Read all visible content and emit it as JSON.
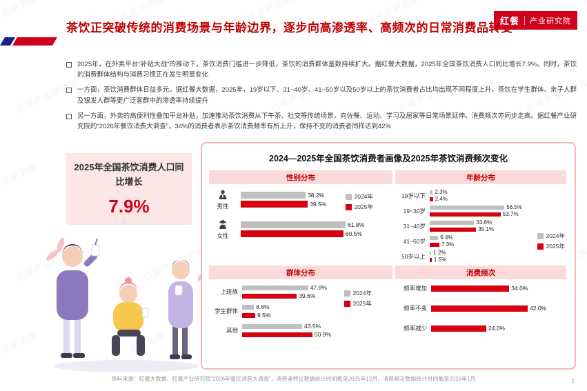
{
  "watermark": {
    "text": "红餐产业研究院"
  },
  "logo": {
    "brand": "红餐",
    "org": "产业研究院"
  },
  "header": {
    "title": "茶饮正突破传统的消费场景与年龄边界，逐步向高渗透率、高频次的日常消费品转变"
  },
  "bullets": [
    "2025年，在外卖平台“补贴大战”的推动下，茶饮消费门槛进一步降低，茶饮的消费群体基数持续扩大。据红餐大数据，2025年全国茶饮消费人口同比增长7.9%。同时，茶饮的消费群体结构与消费习惯正在发生明显变化",
    "一方面，茶饮消费群体日益多元。据红餐大数据，2025年，19岁以下、31~40岁、41~50岁以及50岁以上的茶饮消费者占比均出现不同程度上升，茶饮在学生群体、亲子人群及银发人群等更广泛客群中的渗透率持续提升",
    "另一方面，外卖的高便利性叠加平台补贴，加速推动茶饮消费从下午茶、社交等传统场景，向佐餐、运动、学习及居家等日常场景延伸。消费频次亦同步走高。据红餐产业研究院的“2026年餐饮消费大调查”，34%的消费者表示茶饮消费频率有所上升，保持不变的消费者同样达到42%"
  ],
  "highlight": {
    "label": "2025年全国茶饮消费人口同比增长",
    "value": "7.9%"
  },
  "panel": {
    "title": "2024—2025年全国茶饮消费者画像及2025年茶饮消费频次变化"
  },
  "colors": {
    "accent_red": "#D0021B",
    "brand_red": "#C00000",
    "bar_red": "#D7000F",
    "bar_gray": "#BFBFBF",
    "pill_bg": "#FBDADA",
    "panel_border": "#F5B5B5",
    "highlight_bg": "#FCE6E6"
  },
  "chart_data": [
    {
      "type": "bar",
      "orientation": "horizontal",
      "title": "性别分布",
      "categories": [
        "男性",
        "女性"
      ],
      "category_icons": [
        "male-icon",
        "female-icon"
      ],
      "series": [
        {
          "name": "2024年",
          "values": [
            38.2,
            61.8
          ]
        },
        {
          "name": "2025年",
          "values": [
            39.5,
            60.5
          ]
        }
      ],
      "unit": "%",
      "xmax": 65,
      "legend": true,
      "legend_position": "top-right"
    },
    {
      "type": "bar",
      "orientation": "horizontal",
      "title": "年龄分布",
      "categories": [
        "19岁以下",
        "19~30岁",
        "31~40岁",
        "41~50岁",
        "50岁以上"
      ],
      "series": [
        {
          "name": "2024年",
          "values": [
            2.3,
            56.5,
            33.6,
            6.4,
            1.2
          ]
        },
        {
          "name": "2025年",
          "values": [
            2.4,
            53.7,
            35.1,
            7.3,
            1.5
          ]
        }
      ],
      "unit": "%",
      "xmax": 60,
      "legend": true,
      "legend_position": "bottom-right"
    },
    {
      "type": "bar",
      "orientation": "horizontal",
      "title": "群体分布",
      "categories": [
        "上班族",
        "学生群体",
        "其他"
      ],
      "series": [
        {
          "name": "2024年",
          "values": [
            47.9,
            8.6,
            43.5
          ]
        },
        {
          "name": "2025年",
          "values": [
            39.6,
            9.5,
            50.9
          ]
        }
      ],
      "unit": "%",
      "xmax": 55,
      "legend": true,
      "legend_position": "top-right"
    },
    {
      "type": "bar",
      "orientation": "horizontal",
      "title": "消费频次",
      "categories": [
        "频率增加",
        "频率不变",
        "频率减少"
      ],
      "series": [
        {
          "name": "2025年",
          "values": [
            34.0,
            42.0,
            24.0
          ]
        }
      ],
      "unit": "%",
      "xmax": 45,
      "legend": false
    }
  ],
  "footer": {
    "source": "资料来源：红餐大数据、红餐产业研究院“2026年餐饮消费大调查”，消费者特征数据统计时间截至2025年12月，消费频次数据统计时间截至2026年1月",
    "page": "5"
  }
}
